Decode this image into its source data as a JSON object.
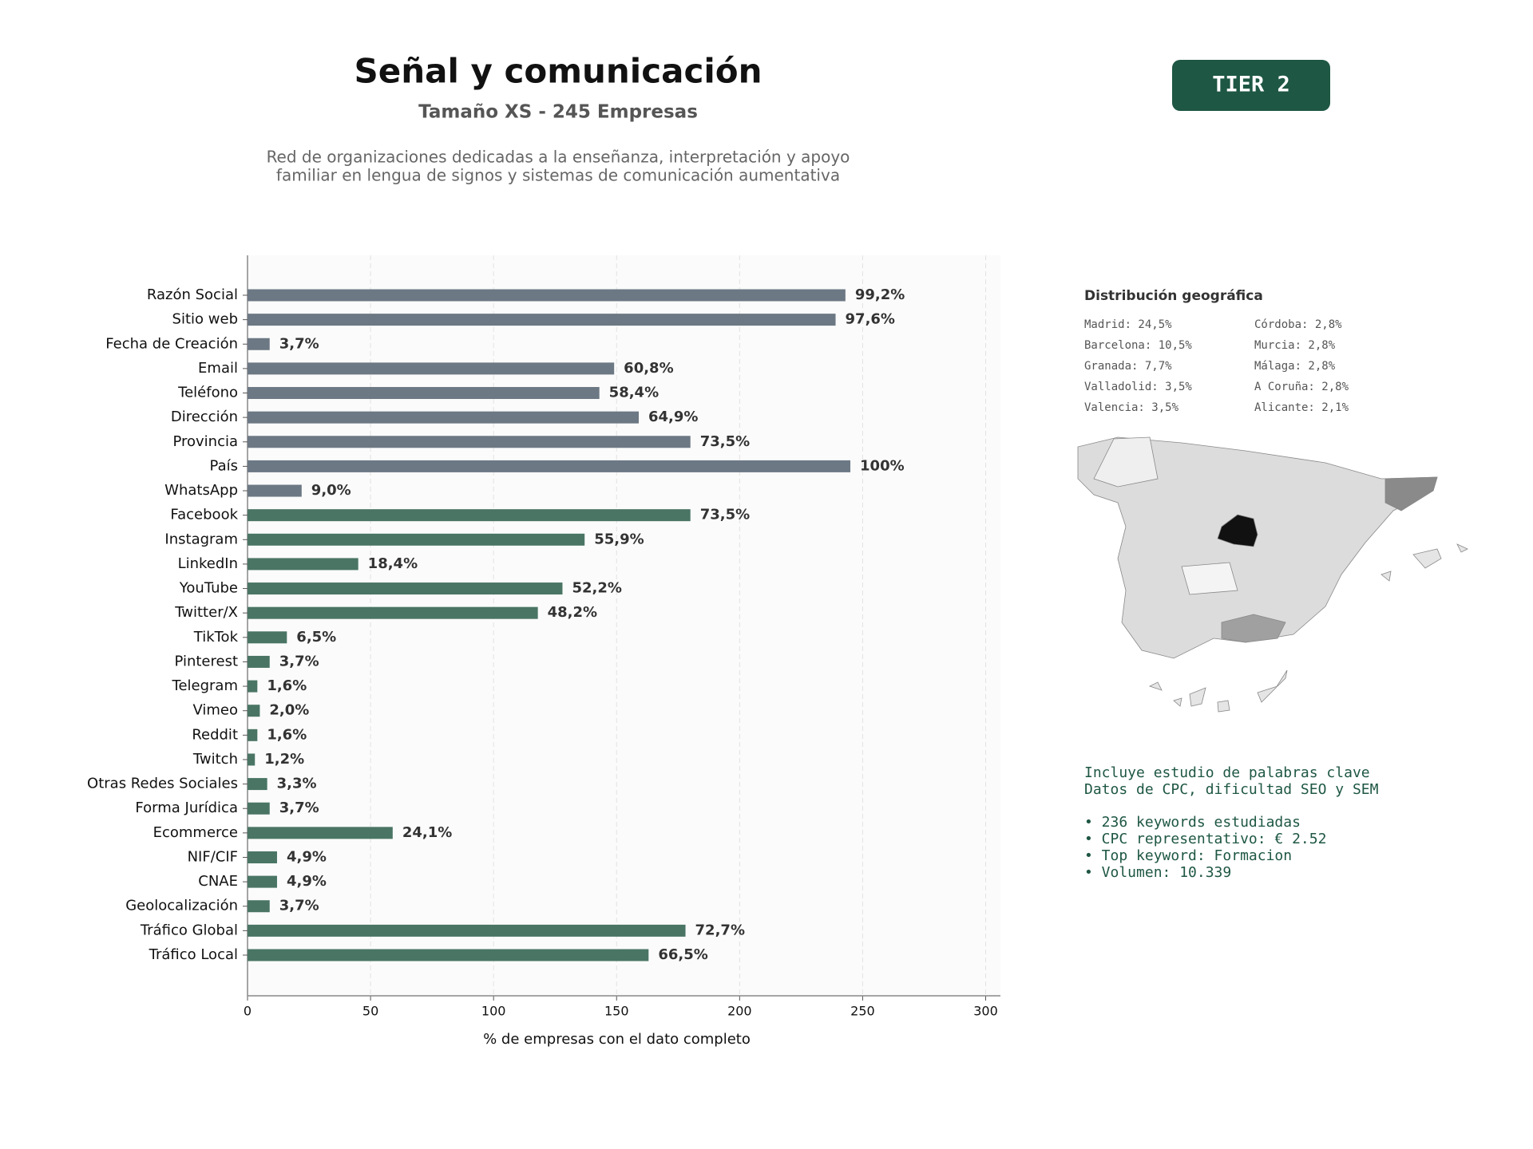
{
  "chart_data": {
    "type": "bar",
    "title": "Señal y comunicación",
    "subtitle": "Tamaño XS - 245 Empresas",
    "description": [
      "Red de organizaciones dedicadas a la enseñanza, interpretación y apoyo",
      "familiar en lengua de signos y sistemas de comunicación aumentativa"
    ],
    "xlabel": "% de empresas con el dato completo",
    "categories": [
      "Razón Social",
      "Sitio web",
      "Fecha de Creación",
      "Email",
      "Teléfono",
      "Dirección",
      "Provincia",
      "País",
      "WhatsApp",
      "Facebook",
      "Instagram",
      "LinkedIn",
      "YouTube",
      "Twitter/X",
      "TikTok",
      "Pinterest",
      "Telegram",
      "Vimeo",
      "Reddit",
      "Twitch",
      "Otras Redes Sociales",
      "Forma Jurídica",
      "Ecommerce",
      "NIF/CIF",
      "CNAE",
      "Geolocalización",
      "Tráfico Global",
      "Tráfico Local"
    ],
    "values": [
      243,
      239,
      9,
      149,
      143,
      159,
      180,
      245,
      22,
      180,
      137,
      45,
      128,
      118,
      16,
      9,
      4,
      5,
      4,
      3,
      8,
      9,
      59,
      12,
      12,
      9,
      178,
      163
    ],
    "value_labels": [
      "99,2%",
      "97,6%",
      "3,7%",
      "60,8%",
      "58,4%",
      "64,9%",
      "73,5%",
      "100%",
      "9,0%",
      "73,5%",
      "55,9%",
      "18,4%",
      "52,2%",
      "48,2%",
      "6,5%",
      "3,7%",
      "1,6%",
      "2,0%",
      "1,6%",
      "1,2%",
      "3,3%",
      "3,7%",
      "24,1%",
      "4,9%",
      "4,9%",
      "3,7%",
      "72,7%",
      "66,5%"
    ],
    "colors": [
      "#6c7884",
      "#6c7884",
      "#6c7884",
      "#6c7884",
      "#6c7884",
      "#6c7884",
      "#6c7884",
      "#6c7884",
      "#6c7884",
      "#4a7565",
      "#4a7565",
      "#4a7565",
      "#4a7565",
      "#4a7565",
      "#4a7565",
      "#4a7565",
      "#4a7565",
      "#4a7565",
      "#4a7565",
      "#4a7565",
      "#4a7565",
      "#4a7565",
      "#4a7565",
      "#4a7565",
      "#4a7565",
      "#4a7565",
      "#4a7565",
      "#4a7565"
    ],
    "xlim": [
      0,
      306
    ],
    "xticks": [
      0,
      50,
      100,
      150,
      200,
      250,
      300
    ],
    "grid": true
  },
  "tier": "TIER 2",
  "geo": {
    "title": "Distribución geográfica",
    "items": [
      "Madrid: 24,5%",
      "Barcelona: 10,5%",
      "Granada: 7,7%",
      "Valladolid: 3,5%",
      "Valencia: 3,5%",
      "Córdoba: 2,8%",
      "Murcia: 2,8%",
      "Málaga: 2,8%",
      "A Coruña: 2,8%",
      "Alicante: 2,1%"
    ]
  },
  "keywords": {
    "lines": [
      "Incluye estudio de palabras clave",
      "Datos de CPC, dificultad SEO y SEM"
    ],
    "bullets": [
      "• 236 keywords estudiadas",
      "• CPC representativo: € 2.52",
      "• Top keyword: Formacion",
      "• Volumen: 10.339"
    ]
  }
}
